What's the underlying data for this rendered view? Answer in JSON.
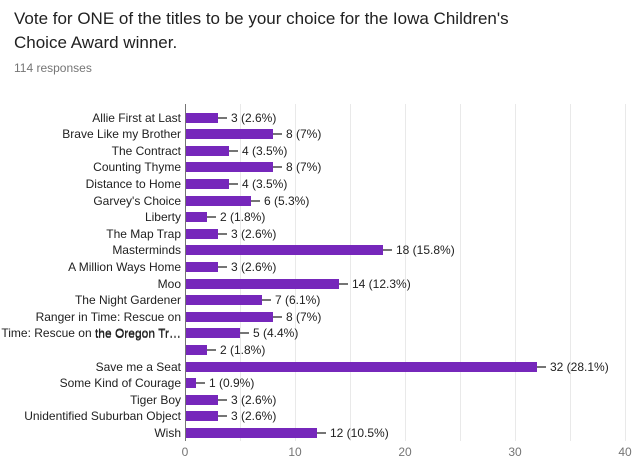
{
  "header": {
    "title_lines": [
      "Vote for ONE of the titles to be your choice for the Iowa Children's",
      "Choice Award winner."
    ],
    "title_full": "Vote for ONE of the titles to be your choice for the Iowa Children's Choice Award winner.",
    "responses": "114 responses"
  },
  "chart_data": {
    "type": "bar",
    "orientation": "horizontal",
    "title": "Vote for ONE of the titles to be your choice for the Iowa Children's Choice Award winner.",
    "subtitle": "114 responses",
    "total_responses": 114,
    "categories": [
      "Allie First at Last",
      "Brave Like my Brother",
      "The Contract",
      "Counting Thyme",
      "Distance to Home",
      "Garvey's Choice",
      "Liberty",
      "The Map Trap",
      "Masterminds",
      "A Million Ways Home",
      "Moo",
      "The Night Gardener",
      "",
      "Ranger in Time: Rescue on the Oregon Tr…",
      "",
      "Save me a Seat",
      "Some Kind of Courage",
      "Tiger Boy",
      "Unidentified Suburban Object",
      "Wish"
    ],
    "values": [
      3,
      8,
      4,
      8,
      4,
      6,
      2,
      3,
      18,
      3,
      14,
      7,
      8,
      5,
      2,
      32,
      1,
      3,
      3,
      12
    ],
    "value_labels": [
      "3 (2.6%)",
      "8 (7%)",
      "4 (3.5%)",
      "8 (7%)",
      "4 (3.5%)",
      "6 (5.3%)",
      "2 (1.8%)",
      "3 (2.6%)",
      "18 (15.8%)",
      "3 (2.6%)",
      "14 (12.3%)",
      "7 (6.1%)",
      "8 (7%)",
      "5 (4.4%)",
      "2 (1.8%)",
      "32 (28.1%)",
      "1 (0.9%)",
      "3 (2.6%)",
      "3 (2.6%)",
      "12 (10.5%)"
    ],
    "wrapped_label": {
      "row_index": 13,
      "lines": [
        "Ranger in Time: Rescue on",
        "the Oregon Tr…"
      ]
    },
    "xlabel": "",
    "ylabel": "",
    "x_ticks": [
      0,
      10,
      20,
      30,
      40
    ],
    "xlim": [
      0,
      40
    ],
    "grid_step": 5,
    "grid": "vertical",
    "legend": "none",
    "colors": {
      "bar": "#7627bb",
      "axis_line": "#757575",
      "gridline": "#e9e9e9",
      "text": "#212121",
      "muted_text": "#757575",
      "connector": "#757575"
    }
  }
}
